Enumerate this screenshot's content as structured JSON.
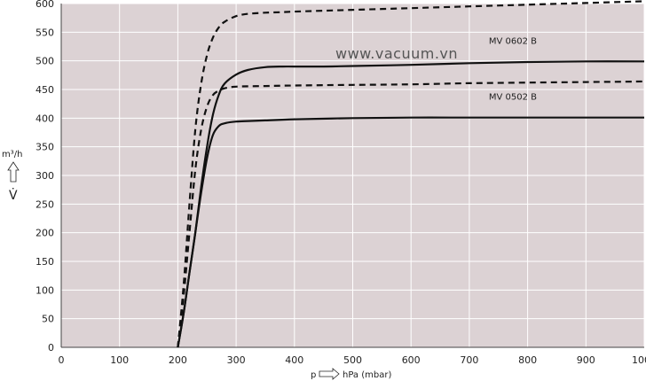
{
  "chart_data": {
    "type": "line",
    "watermark": "www.vacuum.vn",
    "xlabel_symbol": "p",
    "xlabel": "hPa (mbar)",
    "ylabel_unit": "m³/h",
    "ylabel_symbol": "V̇",
    "xlim": [
      0,
      1000
    ],
    "ylim": [
      0,
      600
    ],
    "x_ticks": [
      0,
      100,
      200,
      300,
      400,
      500,
      600,
      700,
      800,
      900,
      1000
    ],
    "y_ticks": [
      0,
      50,
      100,
      150,
      200,
      250,
      300,
      350,
      400,
      450,
      500,
      550,
      600
    ],
    "grid": true,
    "colors": {
      "plot_bg": "#dcd2d4",
      "grid": "#ffffff",
      "line": "#111111"
    },
    "series": [
      {
        "name": "MV 0602 B",
        "style": "solid",
        "x": [
          200,
          210,
          220,
          230,
          240,
          250,
          260,
          270,
          280,
          300,
          320,
          350,
          380,
          400,
          450,
          500,
          600,
          700,
          800,
          900,
          1000
        ],
        "y": [
          0,
          60,
          130,
          200,
          280,
          350,
          405,
          440,
          460,
          476,
          484,
          489,
          490,
          490,
          490,
          491,
          493,
          496,
          498,
          499,
          499
        ]
      },
      {
        "name": "MV 0602 B",
        "style": "dashed",
        "x": [
          200,
          210,
          220,
          230,
          240,
          250,
          260,
          270,
          280,
          300,
          320,
          350,
          380,
          400,
          500,
          600,
          700,
          800,
          900,
          1000
        ],
        "y": [
          0,
          110,
          250,
          380,
          460,
          510,
          540,
          558,
          568,
          578,
          582,
          584,
          585,
          586,
          589,
          592,
          595,
          598,
          601,
          604
        ]
      },
      {
        "name": "MV 0502 B",
        "style": "solid",
        "x": [
          200,
          210,
          220,
          230,
          240,
          250,
          260,
          270,
          280,
          300,
          320,
          350,
          400,
          500,
          600,
          700,
          800,
          900,
          1000
        ],
        "y": [
          0,
          60,
          130,
          200,
          270,
          330,
          370,
          386,
          391,
          394,
          395,
          396,
          398,
          400,
          401,
          401,
          401,
          401,
          401
        ]
      },
      {
        "name": "MV 0502 B",
        "style": "dashed",
        "x": [
          200,
          210,
          220,
          230,
          240,
          250,
          260,
          270,
          280,
          300,
          350,
          400,
          500,
          600,
          700,
          800,
          900,
          1000
        ],
        "y": [
          0,
          90,
          200,
          310,
          380,
          420,
          440,
          448,
          452,
          455,
          456,
          457,
          458,
          459,
          461,
          462,
          463,
          464
        ]
      }
    ],
    "annotations": [
      {
        "text": "MV 0602 B",
        "x": 840,
        "y": 530
      },
      {
        "text": "MV 0502 B",
        "x": 840,
        "y": 432
      }
    ]
  }
}
